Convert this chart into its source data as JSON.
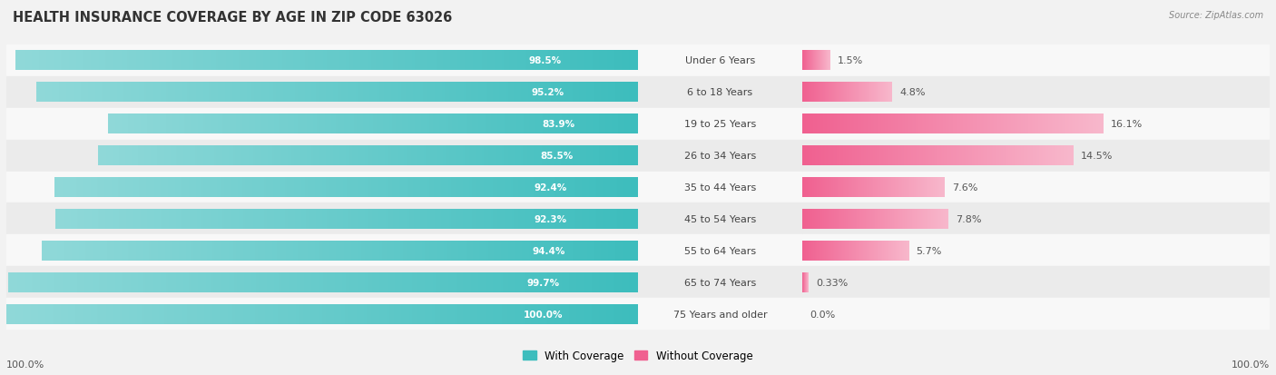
{
  "title": "HEALTH INSURANCE COVERAGE BY AGE IN ZIP CODE 63026",
  "source": "Source: ZipAtlas.com",
  "categories": [
    "Under 6 Years",
    "6 to 18 Years",
    "19 to 25 Years",
    "26 to 34 Years",
    "35 to 44 Years",
    "45 to 54 Years",
    "55 to 64 Years",
    "65 to 74 Years",
    "75 Years and older"
  ],
  "with_coverage": [
    98.5,
    95.2,
    83.9,
    85.5,
    92.4,
    92.3,
    94.4,
    99.7,
    100.0
  ],
  "without_coverage": [
    1.5,
    4.8,
    16.1,
    14.5,
    7.6,
    7.8,
    5.7,
    0.33,
    0.0
  ],
  "with_coverage_labels": [
    "98.5%",
    "95.2%",
    "83.9%",
    "85.5%",
    "92.4%",
    "92.3%",
    "94.4%",
    "99.7%",
    "100.0%"
  ],
  "without_coverage_labels": [
    "1.5%",
    "4.8%",
    "16.1%",
    "14.5%",
    "7.6%",
    "7.8%",
    "5.7%",
    "0.33%",
    "0.0%"
  ],
  "color_with_dark": "#3DBDBD",
  "color_with_light": "#90D9D9",
  "color_without_dark": "#F06090",
  "color_without_light": "#F8B8CC",
  "bg_color": "#F0F0F0",
  "row_bg_light": "#F8F8F8",
  "row_bg_dark": "#EBEBEB",
  "title_fontsize": 10.5,
  "bar_height": 0.62,
  "legend_label_with": "With Coverage",
  "legend_label_without": "Without Coverage",
  "left_xlim": [
    0,
    100
  ],
  "right_xlim": [
    0,
    25
  ],
  "label_fontsize": 8.0,
  "with_label_fontsize": 7.5,
  "without_label_fontsize": 8.0
}
